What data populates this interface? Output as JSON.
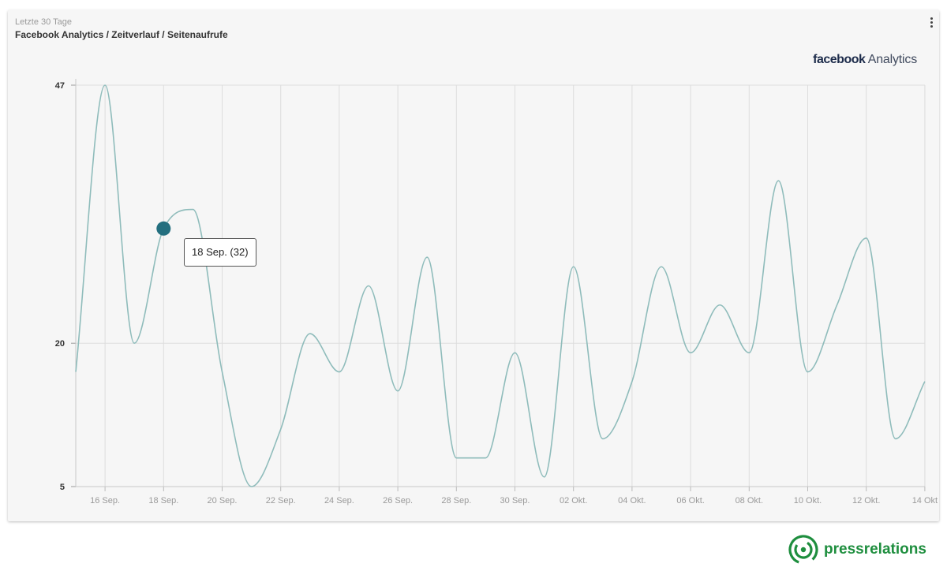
{
  "widget": {
    "subtitle": "Letzte 30 Tage",
    "title": "Facebook Analytics / Zeitverlauf / Seitenaufrufe",
    "brand_bold": "facebook",
    "brand_light": "Analytics",
    "menu_icon": "more-vertical-icon"
  },
  "tooltip": {
    "text": "18 Sep. (32)",
    "category": "18 Sep."
  },
  "footer": {
    "logo_text": "pressrelations",
    "logo_color": "#1e8e3e"
  },
  "colors": {
    "line": "#8fbcbb",
    "marker": "#236f7f",
    "grid": "#dddddd",
    "background": "#f6f6f6"
  },
  "chart_data": {
    "type": "line",
    "categories": [
      "15 Sep.",
      "16 Sep.",
      "17 Sep.",
      "18 Sep.",
      "19 Sep.",
      "20 Sep.",
      "21 Sep.",
      "22 Sep.",
      "23 Sep.",
      "24 Sep.",
      "25 Sep.",
      "26 Sep.",
      "27 Sep.",
      "28 Sep.",
      "29 Sep.",
      "30 Sep.",
      "01 Okt.",
      "02 Okt.",
      "03 Okt.",
      "04 Okt.",
      "05 Okt.",
      "06 Okt.",
      "07 Okt.",
      "08 Okt.",
      "09 Okt.",
      "10 Okt.",
      "11 Okt.",
      "12 Okt.",
      "13 Okt.",
      "14 Okt."
    ],
    "values": [
      17,
      47,
      20,
      32,
      34,
      17,
      5,
      11,
      21,
      17,
      26,
      15,
      29,
      8,
      8,
      19,
      6,
      28,
      10,
      16,
      28,
      19,
      24,
      19,
      37,
      17,
      24,
      31,
      10,
      16
    ],
    "x_tick_labels": [
      "16 Sep.",
      "18 Sep.",
      "20 Sep.",
      "22 Sep.",
      "24 Sep.",
      "26 Sep.",
      "28 Sep.",
      "30 Sep.",
      "02 Okt.",
      "04 Okt.",
      "06 Okt.",
      "08 Okt.",
      "10 Okt.",
      "12 Okt.",
      "14 Okt"
    ],
    "y_ticks": [
      5,
      20,
      47
    ],
    "ylim": [
      5,
      47
    ],
    "grid": true,
    "highlighted_index": 3
  }
}
